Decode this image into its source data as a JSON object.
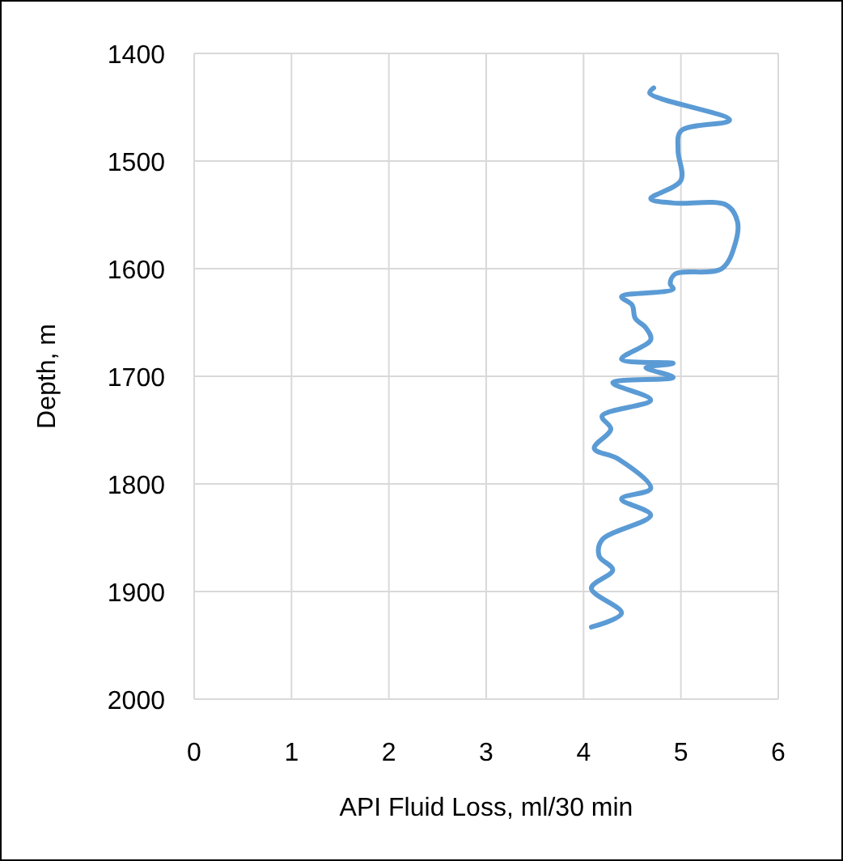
{
  "chart_data": {
    "type": "line",
    "xlabel": "API Fluid Loss, ml/30 min",
    "ylabel": "Depth, m",
    "xlim": [
      0,
      6
    ],
    "xticks": [
      0,
      1,
      2,
      3,
      4,
      5,
      6
    ],
    "ylim": [
      2000,
      1400
    ],
    "yticks": [
      1400,
      1500,
      1600,
      1700,
      1800,
      1900,
      2000
    ],
    "grid": true,
    "marker": "none",
    "line_style": "solid",
    "series": [
      {
        "color": "#5b9bd5",
        "x": [
          4.72,
          4.68,
          5.5,
          5.0,
          4.97,
          5.0,
          4.69,
          4.92,
          5.47,
          5.58,
          5.56,
          5.42,
          4.94,
          4.89,
          4.92,
          4.39,
          4.5,
          4.53,
          4.64,
          4.69,
          4.39,
          4.92,
          4.64,
          4.92,
          4.3,
          4.69,
          4.19,
          4.28,
          4.11,
          4.36,
          4.69,
          4.39,
          4.69,
          4.19,
          4.16,
          4.3,
          4.08,
          4.39,
          4.08
        ],
        "values": [
          1432,
          1437,
          1462,
          1472,
          1490,
          1518,
          1535,
          1539,
          1541,
          1556,
          1576,
          1600,
          1605,
          1614,
          1619,
          1626,
          1634,
          1646,
          1655,
          1666,
          1684,
          1688,
          1692,
          1701,
          1706,
          1722,
          1737,
          1749,
          1767,
          1777,
          1804,
          1814,
          1829,
          1852,
          1867,
          1880,
          1897,
          1920,
          1933
        ]
      }
    ]
  }
}
